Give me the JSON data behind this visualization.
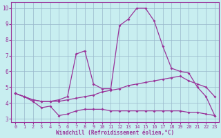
{
  "xlabel": "Windchill (Refroidissement éolien,°C)",
  "bg_color": "#c8eef0",
  "grid_color": "#9ab8cc",
  "line_color": "#993399",
  "x": [
    0,
    1,
    2,
    3,
    4,
    5,
    6,
    7,
    8,
    9,
    10,
    11,
    12,
    13,
    14,
    15,
    16,
    17,
    18,
    19,
    20,
    21,
    22,
    23
  ],
  "line1": [
    4.6,
    4.4,
    4.1,
    3.7,
    3.8,
    3.2,
    3.3,
    3.5,
    3.6,
    3.6,
    3.6,
    3.5,
    3.5,
    3.5,
    3.5,
    3.5,
    3.5,
    3.5,
    3.5,
    3.5,
    3.4,
    3.4,
    3.3,
    3.2
  ],
  "line2": [
    4.6,
    4.4,
    4.2,
    4.1,
    4.1,
    4.1,
    4.2,
    4.3,
    4.4,
    4.5,
    4.7,
    4.8,
    4.9,
    5.1,
    5.2,
    5.3,
    5.4,
    5.5,
    5.6,
    5.7,
    5.4,
    5.2,
    5.0,
    4.4
  ],
  "line3": [
    4.6,
    4.4,
    4.2,
    4.1,
    4.1,
    4.2,
    4.4,
    7.1,
    7.3,
    5.2,
    4.9,
    4.9,
    8.9,
    9.3,
    10.0,
    10.0,
    9.2,
    7.6,
    6.2,
    6.0,
    5.9,
    5.0,
    4.4,
    3.2
  ],
  "xlim": [
    -0.5,
    23.5
  ],
  "ylim": [
    2.8,
    10.4
  ],
  "yticks": [
    3,
    4,
    5,
    6,
    7,
    8,
    9,
    10
  ],
  "xticks": [
    0,
    1,
    2,
    3,
    4,
    5,
    6,
    7,
    8,
    9,
    10,
    11,
    12,
    13,
    14,
    15,
    16,
    17,
    18,
    19,
    20,
    21,
    22,
    23
  ],
  "marker": "D",
  "markersize": 2,
  "linewidth": 0.9,
  "tick_fontsize": 5,
  "xlabel_fontsize": 5.5
}
